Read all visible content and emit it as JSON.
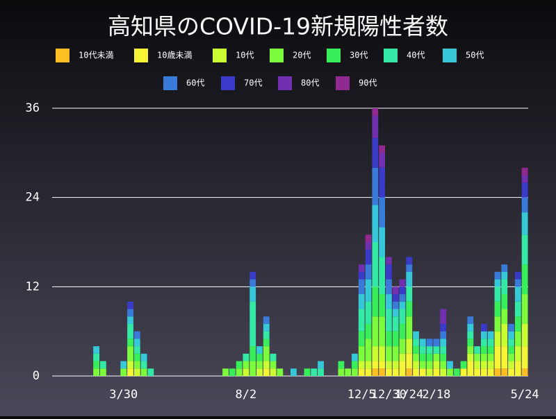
{
  "chart_data": {
    "type": "stacked_bar",
    "title": "高知県のCOVID-19新規陽性者数",
    "categories": [
      null,
      null,
      null,
      null,
      null,
      null,
      null,
      null,
      null,
      null,
      "3/30",
      null,
      null,
      null,
      null,
      null,
      null,
      null,
      null,
      null,
      null,
      null,
      null,
      null,
      null,
      null,
      null,
      null,
      "8/2",
      null,
      null,
      null,
      null,
      null,
      null,
      null,
      null,
      null,
      null,
      null,
      null,
      null,
      null,
      null,
      null,
      "12/5",
      null,
      null,
      null,
      "12/30",
      null,
      null,
      "1/24",
      null,
      null,
      null,
      "2/18",
      null,
      null,
      null,
      null,
      null,
      null,
      null,
      null,
      null,
      null,
      null,
      null,
      "5/24"
    ],
    "series": [
      {
        "name": "10代未満",
        "color": "#fbbf24",
        "values": [
          0,
          0,
          0,
          0,
          0,
          0,
          0,
          0,
          0,
          0,
          0,
          0,
          0,
          0,
          0,
          0,
          0,
          0,
          0,
          0,
          0,
          0,
          0,
          0,
          0,
          0,
          0,
          0,
          0,
          0,
          0,
          0,
          0,
          0,
          0,
          0,
          0,
          0,
          0,
          0,
          0,
          0,
          0,
          0,
          0,
          0,
          0,
          1,
          1,
          0,
          0,
          0,
          1,
          0,
          0,
          0,
          0,
          0,
          0,
          0,
          0,
          0,
          0,
          0,
          0,
          1,
          1,
          0,
          0,
          1
        ]
      },
      {
        "name": "10歳未満",
        "color": "#f5f536",
        "values": [
          0,
          0,
          0,
          0,
          0,
          0,
          0,
          0,
          0,
          0,
          0,
          1,
          0,
          0,
          0,
          0,
          0,
          0,
          0,
          0,
          0,
          0,
          0,
          0,
          0,
          0,
          0,
          0,
          0,
          0,
          0,
          1,
          0,
          0,
          0,
          0,
          0,
          0,
          0,
          0,
          0,
          0,
          0,
          0,
          0,
          1,
          1,
          1,
          1,
          1,
          1,
          2,
          2,
          1,
          1,
          0,
          1,
          0,
          0,
          0,
          1,
          2,
          1,
          1,
          1,
          3,
          3,
          1,
          2,
          3
        ]
      },
      {
        "name": "10代",
        "color": "#ccff33",
        "values": [
          0,
          0,
          0,
          0,
          0,
          0,
          0,
          0,
          0,
          0,
          0,
          1,
          1,
          0,
          0,
          0,
          0,
          0,
          0,
          0,
          0,
          0,
          0,
          0,
          0,
          0,
          0,
          0,
          1,
          0,
          1,
          1,
          1,
          0,
          0,
          0,
          0,
          0,
          0,
          0,
          0,
          0,
          0,
          0,
          0,
          1,
          1,
          2,
          2,
          1,
          1,
          1,
          2,
          1,
          0,
          1,
          1,
          1,
          0,
          0,
          0,
          1,
          1,
          1,
          1,
          2,
          3,
          1,
          2,
          3
        ]
      },
      {
        "name": "20代",
        "color": "#7cfc3c",
        "values": [
          0,
          0,
          0,
          0,
          0,
          0,
          1,
          1,
          0,
          0,
          1,
          2,
          1,
          1,
          0,
          0,
          0,
          0,
          0,
          0,
          0,
          0,
          0,
          0,
          0,
          1,
          0,
          1,
          1,
          2,
          1,
          2,
          1,
          1,
          0,
          0,
          0,
          0,
          0,
          0,
          0,
          0,
          1,
          1,
          1,
          2,
          3,
          4,
          4,
          2,
          2,
          2,
          3,
          1,
          1,
          1,
          1,
          1,
          1,
          0,
          0,
          1,
          1,
          1,
          1,
          2,
          2,
          1,
          2,
          4
        ]
      },
      {
        "name": "30代",
        "color": "#38ee5a",
        "values": [
          0,
          0,
          0,
          0,
          0,
          0,
          1,
          0,
          0,
          0,
          0,
          1,
          1,
          0,
          0,
          0,
          0,
          0,
          0,
          0,
          0,
          0,
          0,
          0,
          0,
          0,
          1,
          1,
          0,
          2,
          1,
          1,
          0,
          0,
          0,
          0,
          0,
          1,
          0,
          0,
          0,
          0,
          1,
          0,
          1,
          2,
          2,
          4,
          3,
          2,
          2,
          2,
          2,
          1,
          1,
          1,
          0,
          1,
          0,
          1,
          1,
          1,
          0,
          1,
          1,
          2,
          2,
          1,
          2,
          4
        ]
      },
      {
        "name": "40代",
        "color": "#34e8a6",
        "values": [
          0,
          0,
          0,
          0,
          0,
          0,
          1,
          1,
          0,
          0,
          0,
          2,
          1,
          1,
          1,
          0,
          0,
          0,
          0,
          0,
          0,
          0,
          0,
          0,
          0,
          0,
          0,
          0,
          1,
          6,
          0,
          1,
          1,
          0,
          0,
          0,
          0,
          0,
          1,
          1,
          0,
          0,
          0,
          0,
          0,
          3,
          3,
          6,
          5,
          3,
          2,
          2,
          2,
          1,
          1,
          1,
          1,
          1,
          0,
          0,
          0,
          1,
          1,
          1,
          1,
          2,
          2,
          1,
          2,
          4
        ]
      },
      {
        "name": "50代",
        "color": "#36c8d8",
        "values": [
          0,
          0,
          0,
          0,
          0,
          0,
          1,
          0,
          0,
          0,
          1,
          1,
          1,
          1,
          0,
          0,
          0,
          0,
          0,
          0,
          0,
          0,
          0,
          0,
          0,
          0,
          0,
          0,
          0,
          2,
          1,
          1,
          0,
          0,
          0,
          1,
          0,
          0,
          0,
          1,
          0,
          0,
          0,
          0,
          1,
          2,
          3,
          5,
          4,
          2,
          1,
          1,
          2,
          1,
          1,
          0,
          0,
          1,
          1,
          0,
          0,
          1,
          0,
          1,
          1,
          1,
          1,
          1,
          2,
          3
        ]
      },
      {
        "name": "60代",
        "color": "#3a7ad8",
        "values": [
          0,
          0,
          0,
          0,
          0,
          0,
          0,
          0,
          0,
          0,
          0,
          1,
          1,
          0,
          0,
          0,
          0,
          0,
          0,
          0,
          0,
          0,
          0,
          0,
          0,
          0,
          0,
          0,
          0,
          1,
          0,
          1,
          0,
          0,
          0,
          0,
          0,
          0,
          0,
          0,
          0,
          0,
          0,
          0,
          0,
          2,
          2,
          5,
          4,
          2,
          1,
          1,
          1,
          0,
          0,
          1,
          1,
          1,
          0,
          0,
          0,
          1,
          0,
          0,
          0,
          1,
          1,
          1,
          1,
          2
        ]
      },
      {
        "name": "70代",
        "color": "#3a3ac8",
        "values": [
          0,
          0,
          0,
          0,
          0,
          0,
          0,
          0,
          0,
          0,
          0,
          1,
          0,
          0,
          0,
          0,
          0,
          0,
          0,
          0,
          0,
          0,
          0,
          0,
          0,
          0,
          0,
          0,
          0,
          1,
          0,
          0,
          0,
          0,
          0,
          0,
          0,
          0,
          0,
          0,
          0,
          0,
          0,
          0,
          0,
          1,
          2,
          4,
          4,
          2,
          1,
          1,
          1,
          0,
          0,
          0,
          0,
          1,
          0,
          0,
          0,
          0,
          0,
          1,
          0,
          0,
          0,
          0,
          1,
          2
        ]
      },
      {
        "name": "80代",
        "color": "#7030b0",
        "values": [
          0,
          0,
          0,
          0,
          0,
          0,
          0,
          0,
          0,
          0,
          0,
          0,
          0,
          0,
          0,
          0,
          0,
          0,
          0,
          0,
          0,
          0,
          0,
          0,
          0,
          0,
          0,
          0,
          0,
          0,
          0,
          0,
          0,
          0,
          0,
          0,
          0,
          0,
          0,
          0,
          0,
          0,
          0,
          0,
          0,
          1,
          1,
          3,
          2,
          1,
          1,
          1,
          0,
          0,
          0,
          0,
          0,
          2,
          0,
          0,
          0,
          0,
          0,
          0,
          0,
          0,
          0,
          0,
          0,
          1
        ]
      },
      {
        "name": "90代",
        "color": "#902a90",
        "values": [
          0,
          0,
          0,
          0,
          0,
          0,
          0,
          0,
          0,
          0,
          0,
          0,
          0,
          0,
          0,
          0,
          0,
          0,
          0,
          0,
          0,
          0,
          0,
          0,
          0,
          0,
          0,
          0,
          0,
          0,
          0,
          0,
          0,
          0,
          0,
          0,
          0,
          0,
          0,
          0,
          0,
          0,
          0,
          0,
          0,
          0,
          1,
          1,
          1,
          0,
          0,
          0,
          0,
          0,
          0,
          0,
          0,
          0,
          0,
          0,
          0,
          0,
          0,
          0,
          0,
          0,
          0,
          0,
          0,
          1
        ]
      }
    ],
    "ylim": [
      0,
      36
    ],
    "yticks": [
      0,
      12,
      24,
      36
    ],
    "grid": true
  }
}
